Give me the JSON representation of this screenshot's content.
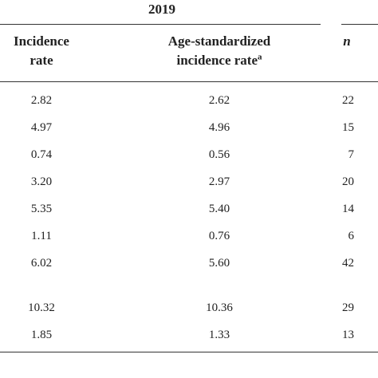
{
  "table": {
    "group_header": "2019",
    "headers": {
      "incidence": [
        "Incidence",
        "rate"
      ],
      "age_standardized": [
        "Age-standardized",
        "incidence rate"
      ],
      "age_standardized_note": "a",
      "n": "n"
    },
    "rows": [
      {
        "incidence": "2.82",
        "age_standardized": "2.62",
        "n": "22"
      },
      {
        "incidence": "4.97",
        "age_standardized": "4.96",
        "n": "15"
      },
      {
        "incidence": "0.74",
        "age_standardized": "0.56",
        "n": "7"
      },
      {
        "incidence": "3.20",
        "age_standardized": "2.97",
        "n": "20"
      },
      {
        "incidence": "5.35",
        "age_standardized": "5.40",
        "n": "14"
      },
      {
        "incidence": "1.11",
        "age_standardized": "0.76",
        "n": "6"
      },
      {
        "incidence": "6.02",
        "age_standardized": "5.60",
        "n": "42"
      },
      {
        "incidence": "10.32",
        "age_standardized": "10.36",
        "n": "29"
      },
      {
        "incidence": "1.85",
        "age_standardized": "1.33",
        "n": "13"
      }
    ]
  }
}
